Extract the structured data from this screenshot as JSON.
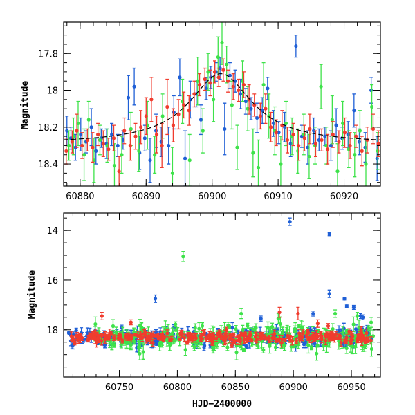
{
  "chart_data": [
    {
      "type": "scatter",
      "title": "",
      "xlabel": "",
      "ylabel": "Magnitude",
      "xlim": [
        60877.5,
        60925.5
      ],
      "ylim": [
        18.52,
        17.63
      ],
      "y_inverted": true,
      "x_ticks": [
        60880,
        60890,
        60900,
        60910,
        60920
      ],
      "y_ticks": [
        17.8,
        18,
        18.2,
        18.4
      ],
      "x_tick_labels": [
        "60880",
        "60890",
        "60900",
        "60910",
        "60920"
      ],
      "y_tick_labels": [
        "17.8",
        "18",
        "18.2",
        "18.4"
      ],
      "series": [
        {
          "color": "#1f5fd6",
          "points": [
            [
              60878.0,
              18.22,
              0.08
            ],
            [
              60878.6,
              18.26,
              0.06
            ],
            [
              60879.3,
              18.31,
              0.07
            ],
            [
              60880.1,
              18.24,
              0.09
            ],
            [
              60880.9,
              18.28,
              0.06
            ],
            [
              60881.7,
              18.2,
              0.1
            ],
            [
              60882.4,
              18.33,
              0.07
            ],
            [
              60883.2,
              18.26,
              0.05
            ],
            [
              60884.0,
              18.29,
              0.08
            ],
            [
              60884.8,
              18.24,
              0.06
            ],
            [
              60885.7,
              18.3,
              0.06
            ],
            [
              60886.5,
              18.27,
              0.05
            ],
            [
              60887.3,
              18.04,
              0.12
            ],
            [
              60888.2,
              17.98,
              0.1
            ],
            [
              60889.0,
              18.34,
              0.09
            ],
            [
              60889.8,
              18.26,
              0.07
            ],
            [
              60890.6,
              18.38,
              0.12
            ],
            [
              60891.5,
              18.22,
              0.09
            ],
            [
              60892.3,
              18.28,
              0.08
            ],
            [
              60893.4,
              18.3,
              0.1
            ],
            [
              60894.2,
              18.12,
              0.09
            ],
            [
              60895.1,
              17.93,
              0.1
            ],
            [
              60895.9,
              18.37,
              0.15
            ],
            [
              60896.7,
              18.05,
              0.1
            ],
            [
              60897.6,
              18.02,
              0.07
            ],
            [
              60898.3,
              18.16,
              0.08
            ],
            [
              60899.1,
              17.99,
              0.06
            ],
            [
              60899.8,
              17.93,
              0.06
            ],
            [
              60900.6,
              17.9,
              0.05
            ],
            [
              60901.2,
              17.88,
              0.06
            ],
            [
              60901.9,
              18.21,
              0.14
            ],
            [
              60902.7,
              17.92,
              0.07
            ],
            [
              60903.5,
              17.95,
              0.06
            ],
            [
              60904.3,
              18.02,
              0.08
            ],
            [
              60905.1,
              18.06,
              0.07
            ],
            [
              60905.9,
              18.1,
              0.06
            ],
            [
              60906.8,
              18.15,
              0.08
            ],
            [
              60907.6,
              18.11,
              0.07
            ],
            [
              60908.4,
              17.99,
              0.06
            ],
            [
              60909.3,
              18.18,
              0.07
            ],
            [
              60910.1,
              18.23,
              0.06
            ],
            [
              60911.0,
              18.2,
              0.08
            ],
            [
              60911.9,
              18.29,
              0.07
            ],
            [
              60912.7,
              17.76,
              0.06
            ],
            [
              60913.6,
              18.25,
              0.06
            ],
            [
              60914.5,
              18.31,
              0.09
            ],
            [
              60915.4,
              18.22,
              0.07
            ],
            [
              60916.2,
              18.27,
              0.06
            ],
            [
              60917.1,
              18.25,
              0.05
            ],
            [
              60918.0,
              18.3,
              0.08
            ],
            [
              60918.8,
              18.19,
              0.09
            ],
            [
              60919.7,
              18.26,
              0.06
            ],
            [
              60920.6,
              18.24,
              0.07
            ],
            [
              60921.5,
              18.11,
              0.09
            ],
            [
              60922.3,
              18.28,
              0.07
            ],
            [
              60923.2,
              18.31,
              0.08
            ],
            [
              60924.1,
              18.0,
              0.07
            ],
            [
              60925.0,
              18.37,
              0.12
            ]
          ]
        },
        {
          "color": "#3ee24a",
          "points": [
            [
              60878.3,
              18.3,
              0.08
            ],
            [
              60879.0,
              18.25,
              0.1
            ],
            [
              60879.7,
              18.18,
              0.12
            ],
            [
              60880.6,
              18.35,
              0.14
            ],
            [
              60881.3,
              18.16,
              0.1
            ],
            [
              60882.1,
              18.38,
              0.12
            ],
            [
              60883.0,
              18.27,
              0.08
            ],
            [
              60884.1,
              18.3,
              0.09
            ],
            [
              60885.2,
              18.41,
              0.12
            ],
            [
              60886.3,
              18.35,
              0.1
            ],
            [
              60887.7,
              18.21,
              0.09
            ],
            [
              60888.9,
              18.33,
              0.11
            ],
            [
              60890.2,
              18.19,
              0.13
            ],
            [
              60891.3,
              18.35,
              0.1
            ],
            [
              60892.5,
              18.14,
              0.12
            ],
            [
              60894.0,
              18.45,
              0.14
            ],
            [
              60895.5,
              18.06,
              0.12
            ],
            [
              60896.6,
              18.38,
              0.14
            ],
            [
              60897.8,
              17.95,
              0.13
            ],
            [
              60898.6,
              18.22,
              0.12
            ],
            [
              60899.4,
              17.9,
              0.1
            ],
            [
              60900.2,
              18.05,
              0.12
            ],
            [
              60900.9,
              17.82,
              0.11
            ],
            [
              60901.5,
              17.74,
              0.12
            ],
            [
              60902.2,
              17.86,
              0.1
            ],
            [
              60903.0,
              18.08,
              0.13
            ],
            [
              60903.8,
              18.31,
              0.12
            ],
            [
              60904.6,
              17.95,
              0.11
            ],
            [
              60905.4,
              18.1,
              0.12
            ],
            [
              60906.2,
              18.34,
              0.13
            ],
            [
              60907.0,
              18.42,
              0.15
            ],
            [
              60907.8,
              17.97,
              0.12
            ],
            [
              60908.6,
              18.14,
              0.12
            ],
            [
              60909.5,
              18.22,
              0.13
            ],
            [
              60910.4,
              18.4,
              0.15
            ],
            [
              60911.2,
              18.18,
              0.12
            ],
            [
              60912.1,
              18.25,
              0.1
            ],
            [
              60913.0,
              18.33,
              0.12
            ],
            [
              60913.9,
              18.24,
              0.11
            ],
            [
              60914.7,
              18.36,
              0.12
            ],
            [
              60915.6,
              18.3,
              0.1
            ],
            [
              60916.5,
              17.98,
              0.12
            ],
            [
              60917.3,
              18.3,
              0.1
            ],
            [
              60918.2,
              18.16,
              0.13
            ],
            [
              60919.0,
              18.44,
              0.15
            ],
            [
              60919.8,
              18.18,
              0.12
            ],
            [
              60920.7,
              18.32,
              0.1
            ],
            [
              60921.6,
              18.35,
              0.12
            ],
            [
              60922.4,
              18.22,
              0.11
            ],
            [
              60923.3,
              18.4,
              0.13
            ],
            [
              60924.2,
              18.09,
              0.12
            ],
            [
              60925.1,
              18.33,
              0.1
            ]
          ]
        },
        {
          "color": "#f03c2e",
          "points": [
            [
              60877.9,
              18.33,
              0.07
            ],
            [
              60878.8,
              18.28,
              0.06
            ],
            [
              60879.5,
              18.22,
              0.09
            ],
            [
              60880.3,
              18.3,
              0.07
            ],
            [
              60881.1,
              18.27,
              0.06
            ],
            [
              60881.9,
              18.31,
              0.08
            ],
            [
              60882.7,
              18.24,
              0.06
            ],
            [
              60883.5,
              18.29,
              0.07
            ],
            [
              60884.3,
              18.32,
              0.06
            ],
            [
              60885.1,
              18.26,
              0.07
            ],
            [
              60885.9,
              18.44,
              0.08
            ],
            [
              60886.7,
              18.22,
              0.07
            ],
            [
              60887.6,
              18.3,
              0.08
            ],
            [
              60888.4,
              18.25,
              0.07
            ],
            [
              60889.2,
              18.2,
              0.09
            ],
            [
              60890.0,
              18.14,
              0.1
            ],
            [
              60890.8,
              18.05,
              0.12
            ],
            [
              60891.6,
              18.24,
              0.1
            ],
            [
              60892.4,
              18.3,
              0.12
            ],
            [
              60893.2,
              18.09,
              0.15
            ],
            [
              60894.1,
              18.19,
              0.09
            ],
            [
              60894.9,
              18.13,
              0.08
            ],
            [
              60895.7,
              18.08,
              0.07
            ],
            [
              60896.5,
              18.11,
              0.08
            ],
            [
              60897.3,
              18.02,
              0.07
            ],
            [
              60898.1,
              17.97,
              0.06
            ],
            [
              60898.9,
              17.94,
              0.06
            ],
            [
              60899.7,
              17.96,
              0.07
            ],
            [
              60900.4,
              17.9,
              0.06
            ],
            [
              60901.0,
              17.93,
              0.05
            ],
            [
              60901.7,
              17.89,
              0.06
            ],
            [
              60902.4,
              17.95,
              0.06
            ],
            [
              60903.2,
              17.98,
              0.07
            ],
            [
              60904.0,
              18.0,
              0.06
            ],
            [
              60904.8,
              17.97,
              0.07
            ],
            [
              60905.6,
              18.05,
              0.08
            ],
            [
              60906.4,
              18.08,
              0.06
            ],
            [
              60907.3,
              18.14,
              0.07
            ],
            [
              60908.1,
              18.1,
              0.08
            ],
            [
              60908.9,
              18.2,
              0.08
            ],
            [
              60909.7,
              18.23,
              0.07
            ],
            [
              60910.6,
              18.19,
              0.08
            ],
            [
              60911.4,
              18.27,
              0.07
            ],
            [
              60912.3,
              18.24,
              0.06
            ],
            [
              60913.1,
              18.3,
              0.08
            ],
            [
              60914.0,
              18.26,
              0.07
            ],
            [
              60914.8,
              18.21,
              0.08
            ],
            [
              60915.7,
              18.29,
              0.07
            ],
            [
              60916.6,
              18.27,
              0.06
            ],
            [
              60917.5,
              18.32,
              0.08
            ],
            [
              60918.3,
              18.24,
              0.07
            ],
            [
              60919.2,
              18.28,
              0.06
            ],
            [
              60920.1,
              18.23,
              0.08
            ],
            [
              60920.9,
              18.3,
              0.07
            ],
            [
              60921.8,
              18.25,
              0.06
            ],
            [
              60922.7,
              18.33,
              0.08
            ],
            [
              60923.5,
              18.27,
              0.07
            ],
            [
              60924.4,
              18.21,
              0.08
            ],
            [
              60925.2,
              18.29,
              0.07
            ]
          ]
        }
      ],
      "model_curve": {
        "color": "#000000",
        "style": "dashed",
        "peak_x": 60901.3,
        "base_mag": 18.29,
        "peak_mag": 17.91,
        "width_days": 5.8
      }
    },
    {
      "type": "scatter",
      "title": "",
      "xlabel": "HJD−2400000",
      "ylabel": "Magnitude",
      "xlim": [
        60702,
        60975
      ],
      "ylim": [
        19.9,
        13.3
      ],
      "y_inverted": true,
      "x_ticks": [
        60750,
        60800,
        60850,
        60900,
        60950
      ],
      "y_ticks": [
        14,
        16,
        18
      ],
      "x_tick_labels": [
        "60750",
        "60800",
        "60850",
        "60900",
        "60950"
      ],
      "y_tick_labels": [
        "14",
        "16",
        "18"
      ],
      "series": [
        {
          "color": "#1f5fd6",
          "base": 18.3,
          "scatter": 0.35,
          "range": [
            60706,
            60970
          ],
          "outliers": [
            [
              60781,
              16.75,
              0.15
            ],
            [
              60897,
              13.65,
              0.15
            ],
            [
              60931,
              14.15,
              0.06
            ],
            [
              60931,
              16.55,
              0.15
            ],
            [
              60944,
              16.75,
              0.05
            ],
            [
              60946,
              17.05,
              0.05
            ],
            [
              60952,
              17.1,
              0.08
            ],
            [
              60958,
              17.45,
              0.1
            ],
            [
              60960,
              17.5,
              0.1
            ],
            [
              60917,
              17.35,
              0.1
            ],
            [
              60872,
              17.55,
              0.1
            ]
          ]
        },
        {
          "color": "#3ee24a",
          "base": 18.3,
          "scatter": 0.55,
          "range": [
            60725,
            60970
          ],
          "outliers": [
            [
              60805,
              15.05,
              0.2
            ],
            [
              60855,
              17.35,
              0.2
            ],
            [
              60887,
              17.55,
              0.2
            ],
            [
              60936,
              17.35,
              0.15
            ],
            [
              60955,
              17.45,
              0.15
            ],
            [
              60967,
              17.7,
              0.2
            ]
          ]
        },
        {
          "color": "#f03c2e",
          "base": 18.3,
          "scatter": 0.25,
          "range": [
            60708,
            60970
          ],
          "outliers": [
            [
              60735,
              17.45,
              0.15
            ],
            [
              60760,
              17.7,
              0.1
            ],
            [
              60888,
              17.3,
              0.2
            ],
            [
              60904,
              17.35,
              0.25
            ],
            [
              60921,
              17.75,
              0.15
            ],
            [
              60930,
              17.85,
              0.1
            ]
          ]
        }
      ]
    }
  ]
}
